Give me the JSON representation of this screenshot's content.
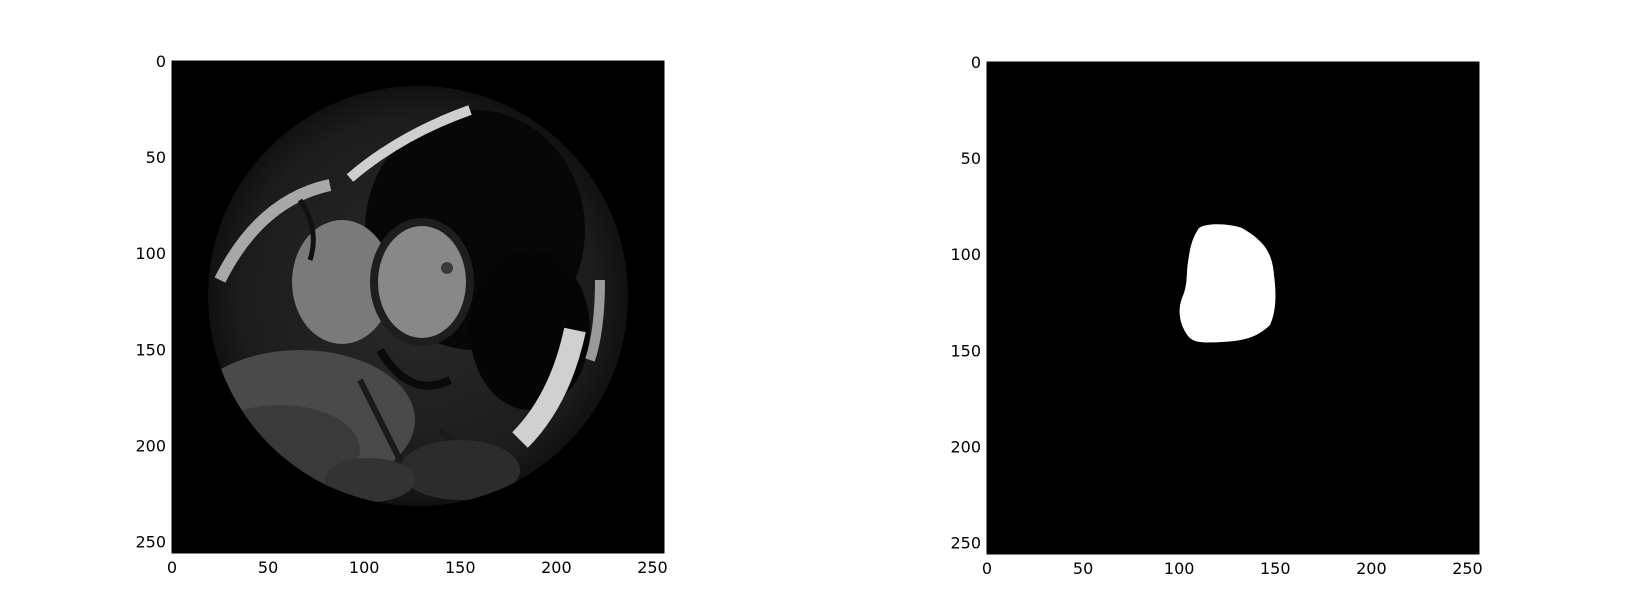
{
  "panels": [
    {
      "name": "mri-image-panel",
      "content": "cardiac MRI short-axis grayscale slice",
      "xticks": [
        "0",
        "50",
        "100",
        "150",
        "200",
        "250"
      ],
      "yticks": [
        "0",
        "50",
        "100",
        "150",
        "200",
        "250"
      ]
    },
    {
      "name": "segmentation-mask-panel",
      "content": "binary segmentation mask (white region on black)",
      "xticks": [
        "0",
        "50",
        "100",
        "150",
        "200",
        "250"
      ],
      "yticks": [
        "0",
        "50",
        "100",
        "150",
        "200",
        "250"
      ]
    }
  ],
  "colors": {
    "background": "#ffffff",
    "image_black": "#000000",
    "mask_white": "#ffffff"
  }
}
